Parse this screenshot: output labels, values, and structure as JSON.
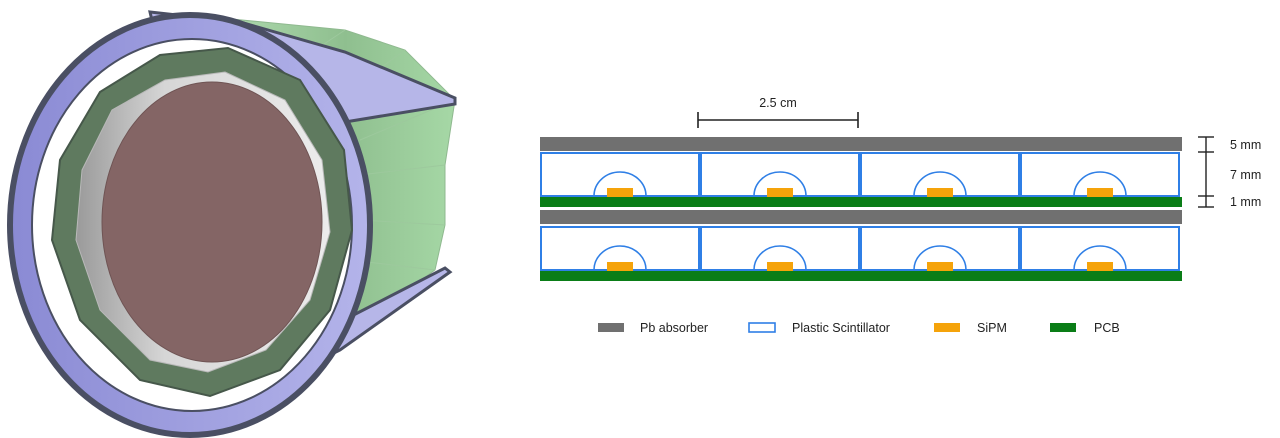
{
  "scale_bar": {
    "label": "2.5 cm"
  },
  "dimensions": {
    "absorber": "5 mm",
    "scintillator": "7 mm",
    "pcb": "1 mm"
  },
  "legend": {
    "absorber": "Pb absorber",
    "scintillator": "Plastic Scintillator",
    "sipm": "SiPM",
    "pcb": "PCB"
  },
  "colors": {
    "absorber": "#707070",
    "scintillator_outline": "#2f7fe6",
    "sipm": "#f5a30a",
    "pcb": "#0a7d17",
    "outer_shell": "#a8a8e0",
    "outer_shell_edge": "#4a4f63",
    "green_layer": "#a8d8a8",
    "inner_ring": "#5f7a5f",
    "core": "#846565"
  }
}
